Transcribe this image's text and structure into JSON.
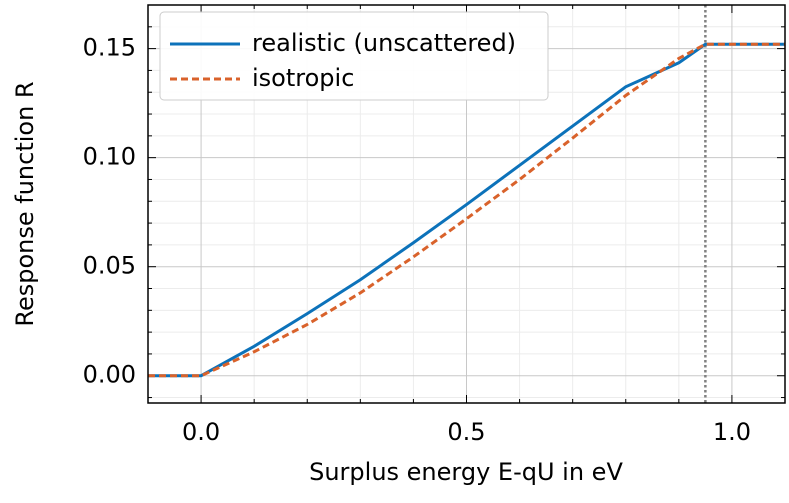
{
  "chart_data": {
    "type": "line",
    "xlabel": "Surplus energy E-qU in eV",
    "ylabel": "Response function R",
    "xlim": [
      -0.1,
      1.1
    ],
    "ylim": [
      -0.0125,
      0.17
    ],
    "xticks": [
      {
        "value": 0,
        "label": "0.0"
      },
      0.5,
      {
        "value": 1,
        "label": "1.0"
      }
    ],
    "yticks": [
      {
        "value": 0,
        "label": "0.00"
      },
      0.05,
      {
        "value": 0.1,
        "label": "0.10"
      },
      0.15
    ],
    "xminorticks": [
      -0.1,
      0.1,
      0.2,
      0.3,
      0.4,
      0.6,
      0.7,
      0.8,
      0.9,
      1.1
    ],
    "yminorticks": [
      -0.01,
      0.01,
      0.02,
      0.03,
      0.04,
      0.06,
      0.07,
      0.08,
      0.09,
      0.11,
      0.12,
      0.13,
      0.14,
      0.16
    ],
    "grid": true,
    "legend": "upper left",
    "vlines": [
      {
        "x": 0.95,
        "color": "#808080"
      }
    ],
    "series": [
      {
        "name": "realistic (unscattered)",
        "color": "#0c72ba",
        "dash": false,
        "x": [
          -0.1,
          0,
          0.1,
          0.2,
          0.3,
          0.4,
          0.5,
          0.6,
          0.7,
          0.8,
          0.9,
          0.95,
          1.1
        ],
        "values": [
          0,
          0,
          0.0135,
          0.0285,
          0.044,
          0.061,
          0.0785,
          0.0965,
          0.1145,
          0.1325,
          0.1435,
          0.152,
          0.152
        ]
      },
      {
        "name": "isotropic",
        "color": "#d9622b",
        "dash": true,
        "x": [
          -0.1,
          0,
          0.1,
          0.2,
          0.3,
          0.4,
          0.5,
          0.6,
          0.7,
          0.8,
          0.9,
          0.95,
          1.1
        ],
        "values": [
          0,
          0,
          0.011,
          0.0235,
          0.038,
          0.0545,
          0.072,
          0.09,
          0.109,
          0.1285,
          0.1455,
          0.152,
          0.152
        ]
      }
    ]
  }
}
